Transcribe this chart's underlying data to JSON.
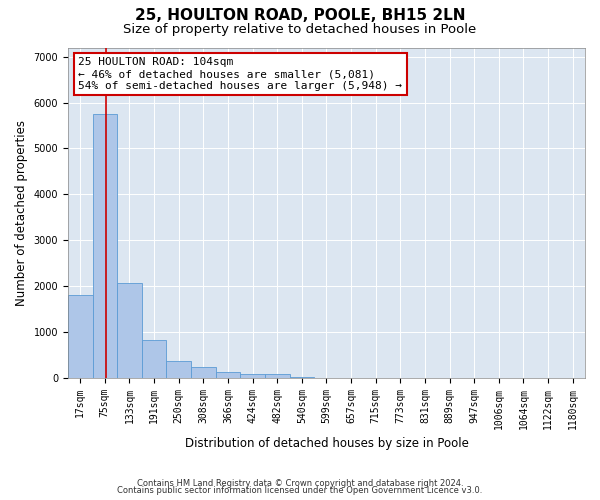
{
  "title": "25, HOULTON ROAD, POOLE, BH15 2LN",
  "subtitle": "Size of property relative to detached houses in Poole",
  "xlabel": "Distribution of detached houses by size in Poole",
  "ylabel": "Number of detached properties",
  "categories": [
    "17sqm",
    "75sqm",
    "133sqm",
    "191sqm",
    "250sqm",
    "308sqm",
    "366sqm",
    "424sqm",
    "482sqm",
    "540sqm",
    "599sqm",
    "657sqm",
    "715sqm",
    "773sqm",
    "831sqm",
    "889sqm",
    "947sqm",
    "1006sqm",
    "1064sqm",
    "1122sqm",
    "1180sqm"
  ],
  "values": [
    1800,
    5750,
    2060,
    830,
    370,
    240,
    130,
    90,
    90,
    20,
    0,
    0,
    0,
    0,
    0,
    0,
    0,
    0,
    0,
    0,
    0
  ],
  "bar_color": "#aec6e8",
  "bar_edge_color": "#5b9bd5",
  "vline_x": 1.03,
  "vline_color": "#cc0000",
  "annotation_text": "25 HOULTON ROAD: 104sqm\n← 46% of detached houses are smaller (5,081)\n54% of semi-detached houses are larger (5,948) →",
  "annotation_box_color": "#ffffff",
  "annotation_box_edge": "#cc0000",
  "ylim": [
    0,
    7200
  ],
  "yticks": [
    0,
    1000,
    2000,
    3000,
    4000,
    5000,
    6000,
    7000
  ],
  "footer1": "Contains HM Land Registry data © Crown copyright and database right 2024.",
  "footer2": "Contains public sector information licensed under the Open Government Licence v3.0.",
  "bg_color": "#ffffff",
  "grid_color": "#dce6f1",
  "title_fontsize": 11,
  "subtitle_fontsize": 9.5,
  "axis_label_fontsize": 8.5,
  "tick_fontsize": 7,
  "footer_fontsize": 6,
  "annotation_fontsize": 8
}
